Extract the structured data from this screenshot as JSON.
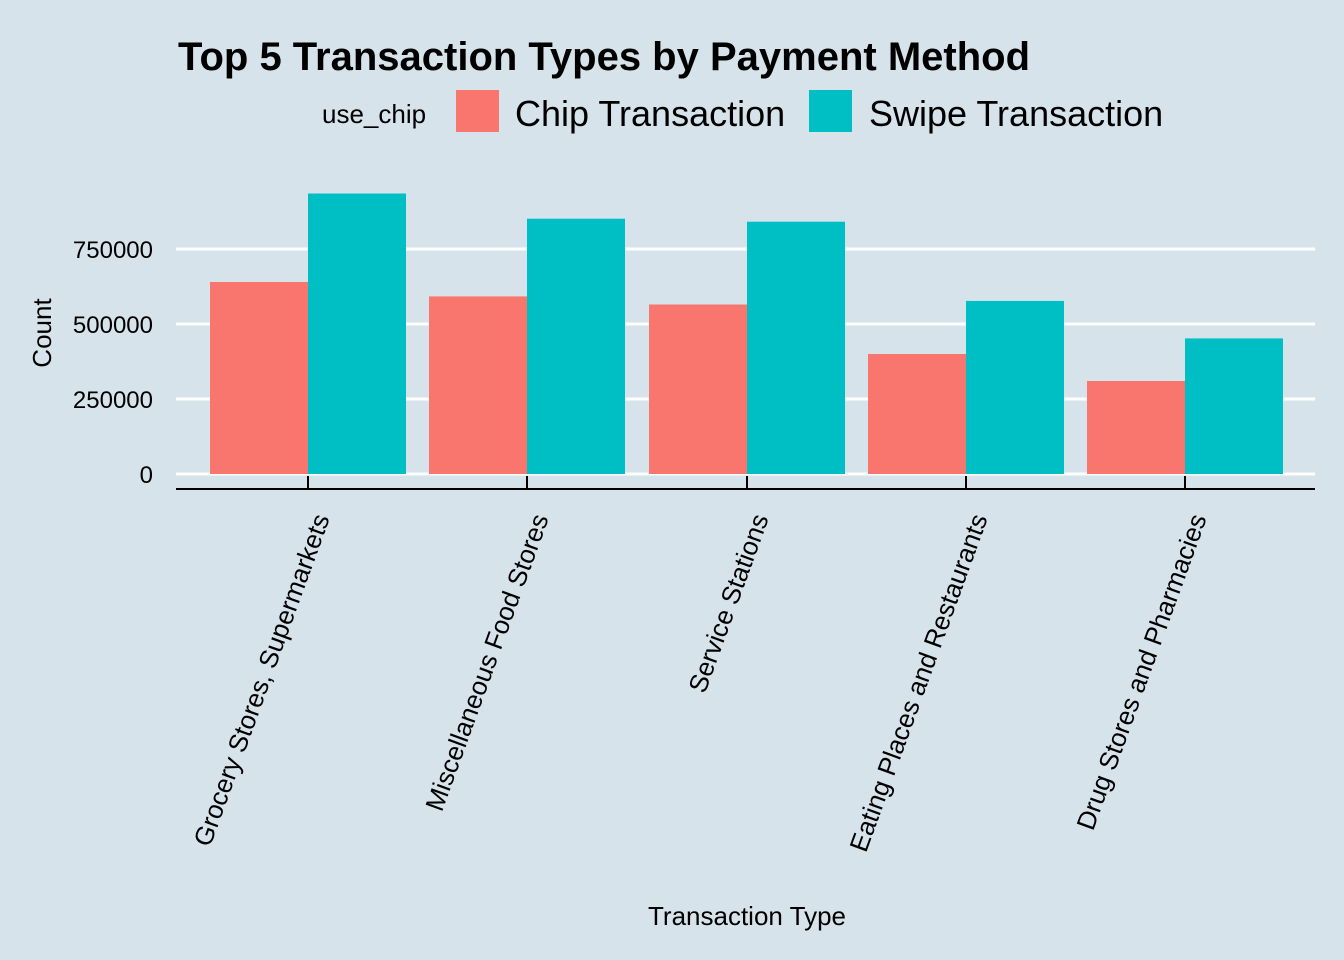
{
  "chart_data": {
    "type": "bar",
    "title": "Top 5 Transaction Types by Payment Method",
    "xlabel": "Transaction Type",
    "ylabel": "Count",
    "legend_title": "use_chip",
    "legend_position": "top",
    "grid": true,
    "ylim": [
      0,
      940000
    ],
    "yticks": [
      0,
      250000,
      500000,
      750000
    ],
    "ytick_labels": [
      "0",
      "250000",
      "500000",
      "750000"
    ],
    "categories": [
      "Grocery Stores, Supermarkets",
      "Miscellaneous Food Stores",
      "Service Stations",
      "Eating Places and Restaurants",
      "Drug Stores and Pharmacies"
    ],
    "series": [
      {
        "name": "Chip Transaction",
        "color": "#f8766d",
        "values": [
          640000,
          592000,
          565000,
          400000,
          310000
        ]
      },
      {
        "name": "Swipe Transaction",
        "color": "#00bfc4",
        "values": [
          935000,
          851000,
          841000,
          577000,
          452000
        ]
      }
    ]
  },
  "colors": {
    "background": "#d6e3ea",
    "gridline": "#ffffff",
    "axis": "#000000"
  }
}
